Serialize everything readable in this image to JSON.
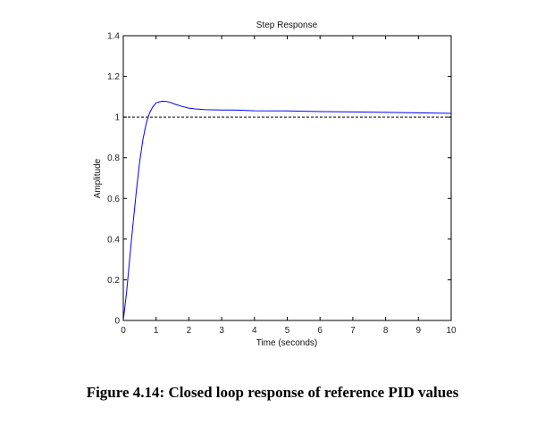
{
  "caption": "Figure 4.14: Closed loop response of reference PID values",
  "colors": {
    "response_line": "#0000ff",
    "reference_line": "#000000",
    "axes": "#000000"
  },
  "chart_data": {
    "type": "line",
    "title": "Step Response",
    "xlabel": "Time (seconds)",
    "ylabel": "Amplitude",
    "xlim": [
      0,
      10
    ],
    "ylim": [
      0,
      1.4
    ],
    "xticks": [
      0,
      1,
      2,
      3,
      4,
      5,
      6,
      7,
      8,
      9,
      10
    ],
    "yticks": [
      0,
      0.2,
      0.4,
      0.6,
      0.8,
      1,
      1.2,
      1.4
    ],
    "xtick_labels": [
      "0",
      "1",
      "2",
      "3",
      "4",
      "5",
      "6",
      "7",
      "8",
      "9",
      "10"
    ],
    "ytick_labels": [
      "0",
      "0.2",
      "0.4",
      "0.6",
      "0.8",
      "1",
      "1.2",
      "1.4"
    ],
    "grid": false,
    "series": [
      {
        "x": [
          0,
          0.1,
          0.2,
          0.3,
          0.4,
          0.5,
          0.6,
          0.7,
          0.8,
          0.9,
          1.0,
          1.1,
          1.2,
          1.3,
          1.4,
          1.6,
          1.8,
          2.0,
          2.2,
          2.5,
          3,
          3.5,
          4,
          5,
          6,
          7,
          8,
          9,
          10
        ],
        "y": [
          0,
          0.14,
          0.31,
          0.48,
          0.64,
          0.78,
          0.89,
          0.97,
          1.02,
          1.05,
          1.07,
          1.075,
          1.078,
          1.077,
          1.074,
          1.062,
          1.052,
          1.044,
          1.04,
          1.036,
          1.035,
          1.034,
          1.031,
          1.03,
          1.027,
          1.025,
          1.023,
          1.021,
          1.018
        ]
      },
      {
        "style": "dashed",
        "x": [
          0,
          10
        ],
        "y": [
          1,
          1
        ]
      }
    ]
  }
}
